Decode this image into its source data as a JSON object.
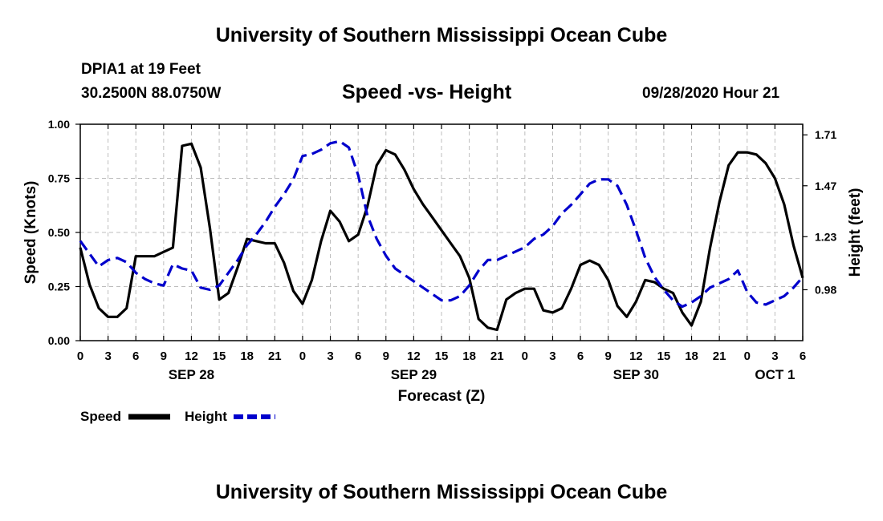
{
  "header": {
    "title": "University of Southern Mississippi Ocean Cube",
    "station": "DPIA1 at 19 Feet",
    "coords": "30.2500N 88.0750W",
    "subtitle": "Speed -vs- Height",
    "datetime": "09/28/2020 Hour 21"
  },
  "footer": {
    "title": "University of Southern Mississippi Ocean Cube"
  },
  "chart_data": {
    "type": "line",
    "title": "Speed -vs- Height",
    "xlabel": "Forecast (Z)",
    "ylabel": "Speed (Knots)",
    "y2label": "Height (feet)",
    "x_range_hours": [
      0,
      78
    ],
    "ylim": [
      0,
      1
    ],
    "y2lim": [
      0.74,
      1.76
    ],
    "x_ticks": [
      "0",
      "3",
      "6",
      "9",
      "12",
      "15",
      "18",
      "21",
      "0",
      "3",
      "6",
      "9",
      "12",
      "15",
      "18",
      "21",
      "0",
      "3",
      "6",
      "9",
      "12",
      "15",
      "18",
      "21",
      "0",
      "3",
      "6"
    ],
    "date_labels": [
      {
        "label": "SEP 28",
        "hour": 12
      },
      {
        "label": "SEP 29",
        "hour": 36
      },
      {
        "label": "SEP 30",
        "hour": 60
      },
      {
        "label": "OCT 1",
        "hour": 75
      }
    ],
    "y_ticks": [
      "0.00",
      "0.25",
      "0.50",
      "0.75",
      "1.00"
    ],
    "y2_ticks": [
      "0.98",
      "1.23",
      "1.47",
      "1.71"
    ],
    "legend": [
      {
        "label": "Speed",
        "color": "#000000",
        "dash": "solid"
      },
      {
        "label": "Height",
        "color": "#0000cc",
        "dash": "dashed"
      }
    ],
    "series": [
      {
        "name": "Speed",
        "axis": "left",
        "color": "#000000",
        "x": [
          0,
          1,
          2,
          3,
          4,
          5,
          6,
          7,
          8,
          9,
          10,
          11,
          12,
          13,
          14,
          15,
          16,
          17,
          18,
          19,
          20,
          21,
          22,
          23,
          24,
          25,
          26,
          27,
          28,
          29,
          30,
          31,
          32,
          33,
          34,
          35,
          36,
          37,
          38,
          39,
          40,
          41,
          42,
          43,
          44,
          45,
          46,
          47,
          48,
          49,
          50,
          51,
          52,
          53,
          54,
          55,
          56,
          57,
          58,
          59,
          60,
          61,
          62,
          63,
          64,
          65,
          66,
          67,
          68,
          69,
          70,
          71,
          72,
          73,
          74,
          75,
          76,
          77,
          78
        ],
        "values": [
          0.43,
          0.26,
          0.15,
          0.11,
          0.11,
          0.15,
          0.39,
          0.39,
          0.39,
          0.41,
          0.43,
          0.9,
          0.91,
          0.8,
          0.52,
          0.19,
          0.22,
          0.34,
          0.47,
          0.46,
          0.45,
          0.45,
          0.36,
          0.23,
          0.17,
          0.28,
          0.46,
          0.6,
          0.55,
          0.46,
          0.49,
          0.62,
          0.81,
          0.88,
          0.86,
          0.79,
          0.7,
          0.63,
          0.57,
          0.51,
          0.45,
          0.39,
          0.29,
          0.1,
          0.06,
          0.05,
          0.19,
          0.22,
          0.24,
          0.24,
          0.14,
          0.13,
          0.15,
          0.24,
          0.35,
          0.37,
          0.35,
          0.28,
          0.16,
          0.11,
          0.18,
          0.28,
          0.27,
          0.24,
          0.22,
          0.13,
          0.07,
          0.18,
          0.43,
          0.64,
          0.81,
          0.87,
          0.87,
          0.86,
          0.82,
          0.75,
          0.63,
          0.44,
          0.29
        ]
      },
      {
        "name": "Height",
        "axis": "right",
        "color": "#0000cc",
        "x": [
          0,
          1,
          2,
          3,
          4,
          5,
          6,
          7,
          8,
          9,
          10,
          11,
          12,
          13,
          14,
          15,
          16,
          17,
          18,
          19,
          20,
          21,
          22,
          23,
          24,
          25,
          26,
          27,
          28,
          29,
          30,
          31,
          32,
          33,
          34,
          35,
          36,
          37,
          38,
          39,
          40,
          41,
          42,
          43,
          44,
          45,
          46,
          47,
          48,
          49,
          50,
          51,
          52,
          53,
          54,
          55,
          56,
          57,
          58,
          59,
          60,
          61,
          62,
          63,
          64,
          65,
          66,
          67,
          68,
          69,
          70,
          71,
          72,
          73,
          74,
          75,
          76,
          77,
          78
        ],
        "values": [
          1.21,
          1.15,
          1.09,
          1.12,
          1.13,
          1.11,
          1.06,
          1.03,
          1.01,
          1.0,
          1.1,
          1.08,
          1.07,
          0.99,
          0.98,
          1.0,
          1.06,
          1.12,
          1.19,
          1.24,
          1.3,
          1.37,
          1.43,
          1.5,
          1.61,
          1.62,
          1.64,
          1.67,
          1.68,
          1.65,
          1.52,
          1.33,
          1.22,
          1.14,
          1.08,
          1.05,
          1.02,
          0.99,
          0.96,
          0.93,
          0.93,
          0.95,
          1.0,
          1.07,
          1.12,
          1.12,
          1.14,
          1.16,
          1.18,
          1.22,
          1.24,
          1.28,
          1.34,
          1.38,
          1.43,
          1.48,
          1.5,
          1.5,
          1.47,
          1.38,
          1.26,
          1.13,
          1.04,
          0.98,
          0.93,
          0.9,
          0.92,
          0.95,
          0.99,
          1.01,
          1.03,
          1.07,
          0.97,
          0.92,
          0.91,
          0.93,
          0.95,
          0.99,
          1.04
        ]
      }
    ]
  }
}
